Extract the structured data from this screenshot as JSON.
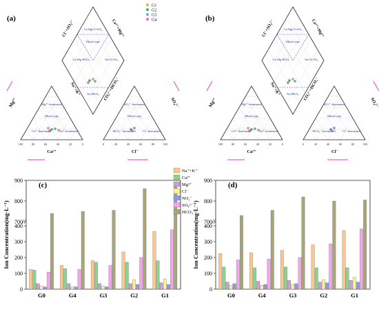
{
  "panels": {
    "a": "(a)",
    "b": "(b)",
    "c": "(c)",
    "d": "(d)"
  },
  "piper": {
    "legend": [
      "G1",
      "G2",
      "G3",
      "G4"
    ],
    "legend_colors": [
      "#f4a460",
      "#3cb371",
      "#6fa8dc",
      "#da70d6"
    ],
    "diamond_labels": [
      "Ca-Mg-Cl-SO₄",
      "Mixed type",
      "Ca-Mg-HCO₃",
      "Na-Cl-SO₄",
      "Na-HCO₃"
    ],
    "cation_labels": [
      "Mg²⁺-dominated",
      "Mixed type",
      "Ca²⁺-dominated",
      "Na⁺-dominated"
    ],
    "anion_labels": [
      "SO₄²⁻-dominated",
      "Mixed type",
      "HCO₃⁻-dominated",
      "Cl⁻-dominated"
    ],
    "axis_labels": {
      "ca": "Ca²⁺",
      "cl": "Cl⁻",
      "mg": "Mg²⁺",
      "so4": "SO₄²⁻",
      "na_k": "Na⁺+K⁺",
      "co3_hco3": "CO₃²⁻+HCO₃⁻",
      "cl_so4": "Cl⁻+SO₄²⁻",
      "ca_mg": "Ca²⁺+Mg²⁺"
    },
    "ticks": [
      "0",
      "20",
      "40",
      "60",
      "80",
      "100"
    ]
  },
  "chart_data": [
    {
      "type": "bar",
      "panel": "(c)",
      "categories": [
        "G0",
        "G4",
        "G3",
        "G2",
        "G1"
      ],
      "ylabel": "Ion Concentration(mg·L⁻¹)",
      "yticks": [
        "0",
        "100",
        "200",
        "300",
        "400",
        "700",
        "800",
        "900"
      ],
      "y_break": [
        400,
        700
      ],
      "series": [
        {
          "name": "Na⁺+K⁺",
          "color": "#f9c78f",
          "values": [
            125,
            150,
            180,
            235,
            365
          ]
        },
        {
          "name": "Ca²⁺",
          "color": "#8fd18f",
          "values": [
            120,
            130,
            170,
            170,
            180
          ]
        },
        {
          "name": "Mg²⁺",
          "color": "#c7a0d4",
          "values": [
            35,
            35,
            35,
            35,
            40
          ]
        },
        {
          "name": "Cl⁻",
          "color": "#f7f39a",
          "values": [
            20,
            15,
            20,
            60,
            65
          ]
        },
        {
          "name": "NO₃⁻",
          "color": "#8f9be0",
          "values": [
            15,
            15,
            15,
            30,
            30
          ]
        },
        {
          "name": "SO₄²⁻",
          "color": "#f2a7e8",
          "values": [
            108,
            125,
            150,
            200,
            375
          ]
        },
        {
          "name": "HCO₃⁻",
          "color": "#a9a57a",
          "values": [
            740,
            750,
            755,
            860,
            870
          ]
        }
      ]
    },
    {
      "type": "bar",
      "panel": "(d)",
      "categories": [
        "G0",
        "G4",
        "G3",
        "G2",
        "G1"
      ],
      "ylabel": "Ion Concentration(mg·L⁻¹)",
      "yticks": [
        "0",
        "100",
        "200",
        "300",
        "400",
        "700",
        "800",
        "900"
      ],
      "y_break": [
        400,
        700
      ],
      "series": [
        {
          "name": "Na⁺+K⁺",
          "color": "#f9c78f",
          "values": [
            225,
            230,
            245,
            280,
            370
          ]
        },
        {
          "name": "Ca²⁺",
          "color": "#8fd18f",
          "values": [
            140,
            135,
            140,
            135,
            135
          ]
        },
        {
          "name": "Mg²⁺",
          "color": "#c7a0d4",
          "values": [
            45,
            50,
            55,
            45,
            55
          ]
        },
        {
          "name": "Cl⁻",
          "color": "#f7f39a",
          "values": [
            25,
            25,
            30,
            60,
            75
          ]
        },
        {
          "name": "NO₃⁻",
          "color": "#8f9be0",
          "values": [
            35,
            30,
            35,
            40,
            45
          ]
        },
        {
          "name": "SO₄²⁻",
          "color": "#f2a7e8",
          "values": [
            185,
            190,
            200,
            285,
            380
          ]
        },
        {
          "name": "HCO₃⁻",
          "color": "#a9a57a",
          "values": [
            730,
            755,
            820,
            800,
            805
          ]
        }
      ]
    }
  ]
}
